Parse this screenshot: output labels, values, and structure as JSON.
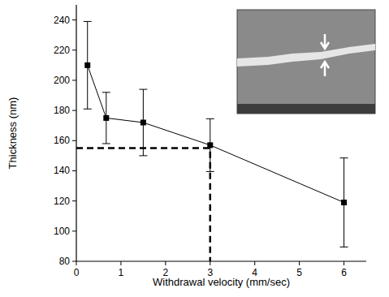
{
  "chart_data": {
    "type": "line",
    "x_label": "Withdrawal velocity (mm/sec)",
    "y_label": "Thickness (nm)",
    "x": [
      0.25,
      0.67,
      1.5,
      3,
      6
    ],
    "series": [
      {
        "name": null,
        "color": "#000000",
        "marker": "square",
        "line_style": "solid",
        "values": [
          210,
          175,
          172,
          157,
          119
        ],
        "errors": [
          29,
          17,
          22,
          17.5,
          29.5
        ]
      }
    ],
    "xlim": [
      0,
      6.5
    ],
    "xticks": [
      0,
      1,
      2,
      3,
      4,
      5,
      6
    ],
    "ylim": [
      80,
      250
    ],
    "yticks": [
      80,
      100,
      120,
      140,
      160,
      180,
      200,
      220,
      240
    ],
    "reference_point": {
      "x": 3,
      "y": 155
    },
    "grid": false
  }
}
